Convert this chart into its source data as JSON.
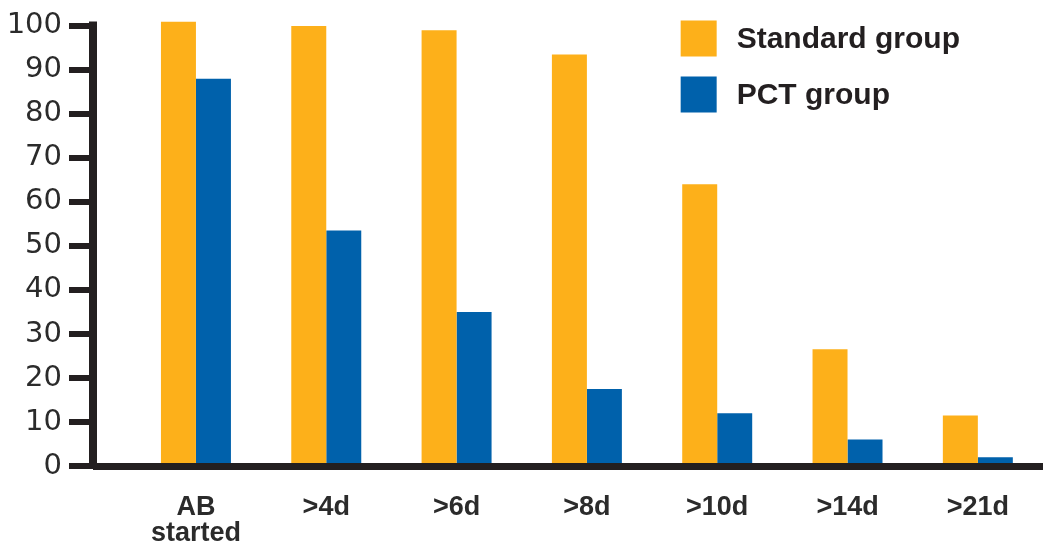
{
  "chart_data": {
    "type": "bar",
    "categories": [
      "AB started",
      ">4d",
      ">6d",
      ">8d",
      ">10d",
      ">14d",
      ">21d"
    ],
    "series": [
      {
        "name": "Standard group",
        "color": "#fdb01a",
        "values": [
          101,
          100,
          99,
          93.5,
          64,
          26.5,
          11.5
        ]
      },
      {
        "name": "PCT group",
        "color": "#0061ab",
        "values": [
          88,
          53.5,
          35,
          17.5,
          12,
          6,
          2
        ]
      }
    ],
    "ylim": [
      0,
      101
    ],
    "yticks": [
      0,
      10,
      20,
      30,
      40,
      50,
      60,
      70,
      80,
      90,
      100
    ],
    "legend": "top right"
  }
}
